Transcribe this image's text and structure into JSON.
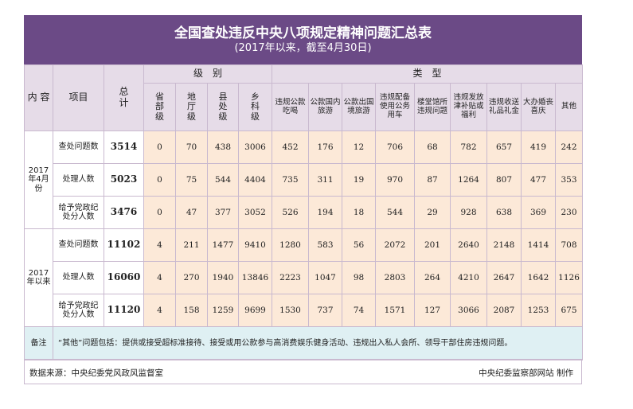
{
  "title": {
    "main": "全国查处违反中央八项规定精神问题汇总表",
    "sub": "(2017年以来，截至4月30日)"
  },
  "header": {
    "content": "内 容",
    "item": "项目",
    "total": "总计",
    "level_group": "级　别",
    "type_group": "类　型",
    "levels": [
      "省部级",
      "地厅级",
      "县处级",
      "乡科级"
    ],
    "types": [
      "违规公款吃喝",
      "公款国内旅游",
      "公款出国境旅游",
      "违规配备使用公务用车",
      "楼堂馆所违规问题",
      "违规发放津补贴或福利",
      "违规收送礼品礼金",
      "大办婚丧喜庆",
      "其他"
    ]
  },
  "groups": [
    {
      "label": "2017年4月份",
      "rows": [
        {
          "item": "查处问题数",
          "total": "3514",
          "levels": [
            "0",
            "70",
            "438",
            "3006"
          ],
          "types": [
            "452",
            "176",
            "12",
            "706",
            "68",
            "782",
            "657",
            "419",
            "242"
          ]
        },
        {
          "item": "处理人数",
          "total": "5023",
          "levels": [
            "0",
            "75",
            "544",
            "4404"
          ],
          "types": [
            "735",
            "311",
            "19",
            "970",
            "87",
            "1264",
            "807",
            "477",
            "353"
          ]
        },
        {
          "item": "给予党政纪处分人数",
          "total": "3476",
          "levels": [
            "0",
            "47",
            "377",
            "3052"
          ],
          "types": [
            "526",
            "194",
            "18",
            "544",
            "29",
            "928",
            "638",
            "369",
            "230"
          ]
        }
      ]
    },
    {
      "label": "2017年以来",
      "rows": [
        {
          "item": "查处问题数",
          "total": "11102",
          "levels": [
            "4",
            "211",
            "1477",
            "9410"
          ],
          "types": [
            "1280",
            "583",
            "56",
            "2072",
            "201",
            "2640",
            "2148",
            "1414",
            "708"
          ]
        },
        {
          "item": "处理人数",
          "total": "16060",
          "levels": [
            "4",
            "270",
            "1940",
            "13846"
          ],
          "types": [
            "2223",
            "1047",
            "98",
            "2803",
            "264",
            "4210",
            "2647",
            "1642",
            "1126"
          ]
        },
        {
          "item": "给予党政纪处分人数",
          "total": "11120",
          "levels": [
            "4",
            "158",
            "1259",
            "9699"
          ],
          "types": [
            "1530",
            "737",
            "74",
            "1571",
            "127",
            "3066",
            "2087",
            "1253",
            "675"
          ]
        }
      ]
    }
  ],
  "note": {
    "label": "备注",
    "text": "“其他”问题包括：提供或接受超标准接待、接受或用公款参与高消费娱乐健身活动、违规出入私人会所、领导干部住房违规问题。"
  },
  "footer": {
    "source": "数据来源：中央纪委党风政风监督室",
    "credit": "中央纪委监察部网站  制作"
  }
}
